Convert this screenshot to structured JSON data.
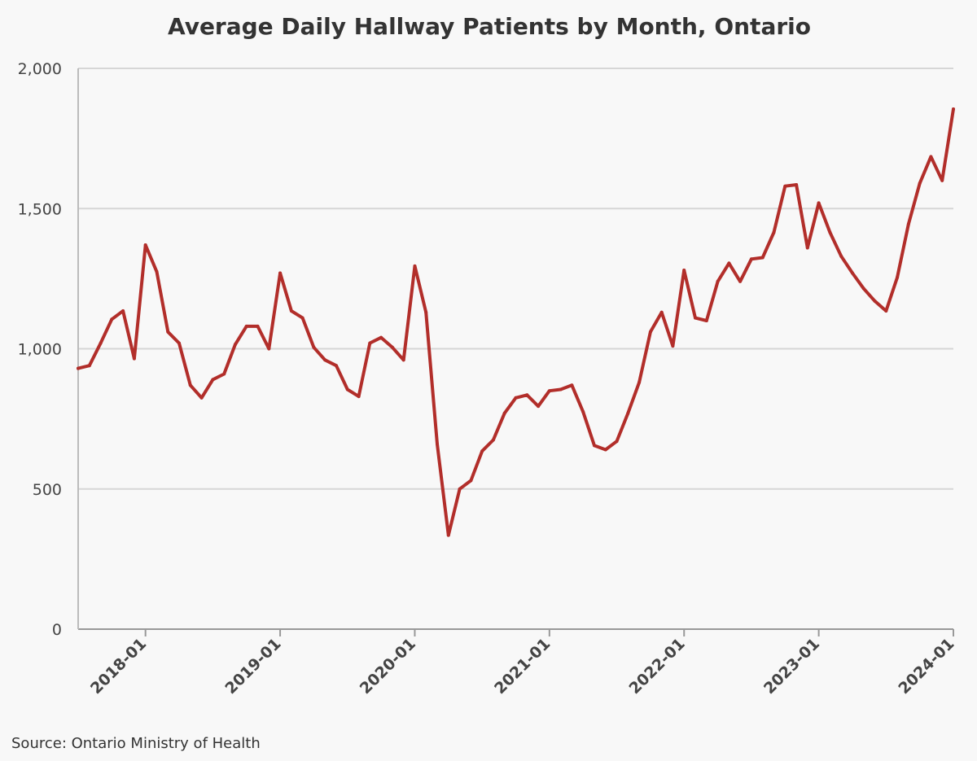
{
  "chart_data": {
    "type": "line",
    "title": "Average Daily Hallway Patients by Month, Ontario",
    "source": "Source: Ontario Ministry of Health",
    "xlabel": "",
    "ylabel": "",
    "ylim": [
      0,
      2000
    ],
    "yticks": [
      0,
      500,
      1000,
      1500,
      2000
    ],
    "ytick_labels": [
      "0",
      "500",
      "1,000",
      "1,500",
      "2,000"
    ],
    "xlim": [
      "2017-07",
      "2024-01"
    ],
    "xticks": [
      "2018-01",
      "2019-01",
      "2020-01",
      "2021-01",
      "2022-01",
      "2023-01",
      "2024-01"
    ],
    "grid": "horizontal",
    "legend": "none",
    "line_color": "#b22e2a",
    "series": [
      {
        "x": [
          "2017-07",
          "2017-08",
          "2017-09",
          "2017-10",
          "2017-11",
          "2017-12",
          "2018-01",
          "2018-02",
          "2018-03",
          "2018-04",
          "2018-05",
          "2018-06",
          "2018-07",
          "2018-08",
          "2018-09",
          "2018-10",
          "2018-11",
          "2018-12",
          "2019-01",
          "2019-02",
          "2019-03",
          "2019-04",
          "2019-05",
          "2019-06",
          "2019-07",
          "2019-08",
          "2019-09",
          "2019-10",
          "2019-11",
          "2019-12",
          "2020-01",
          "2020-02",
          "2020-03",
          "2020-04",
          "2020-05",
          "2020-06",
          "2020-07",
          "2020-08",
          "2020-09",
          "2020-10",
          "2020-11",
          "2020-12",
          "2021-01",
          "2021-02",
          "2021-03",
          "2021-04",
          "2021-05",
          "2021-06",
          "2021-07",
          "2021-08",
          "2021-09",
          "2021-10",
          "2021-11",
          "2021-12",
          "2022-01",
          "2022-02",
          "2022-03",
          "2022-04",
          "2022-05",
          "2022-06",
          "2022-07",
          "2022-08",
          "2022-09",
          "2022-10",
          "2022-11",
          "2022-12",
          "2023-01",
          "2023-02",
          "2023-03",
          "2023-04",
          "2023-05",
          "2023-06",
          "2023-07",
          "2023-08",
          "2023-09",
          "2023-10",
          "2023-11",
          "2023-12",
          "2024-01"
        ],
        "values": [
          930,
          940,
          1020,
          1105,
          1135,
          965,
          1370,
          1275,
          1060,
          1020,
          870,
          825,
          890,
          910,
          1015,
          1080,
          1080,
          1000,
          1270,
          1135,
          1110,
          1005,
          960,
          940,
          855,
          830,
          1020,
          1040,
          1005,
          960,
          1295,
          1130,
          660,
          335,
          500,
          530,
          635,
          675,
          770,
          825,
          835,
          795,
          850,
          855,
          870,
          775,
          655,
          640,
          670,
          770,
          880,
          1060,
          1130,
          1010,
          1280,
          1110,
          1100,
          1240,
          1305,
          1240,
          1320,
          1325,
          1415,
          1580,
          1585,
          1360,
          1520,
          1415,
          1330,
          1270,
          1215,
          1170,
          1135,
          1255,
          1445,
          1590,
          1685,
          1600,
          1855
        ]
      }
    ]
  }
}
